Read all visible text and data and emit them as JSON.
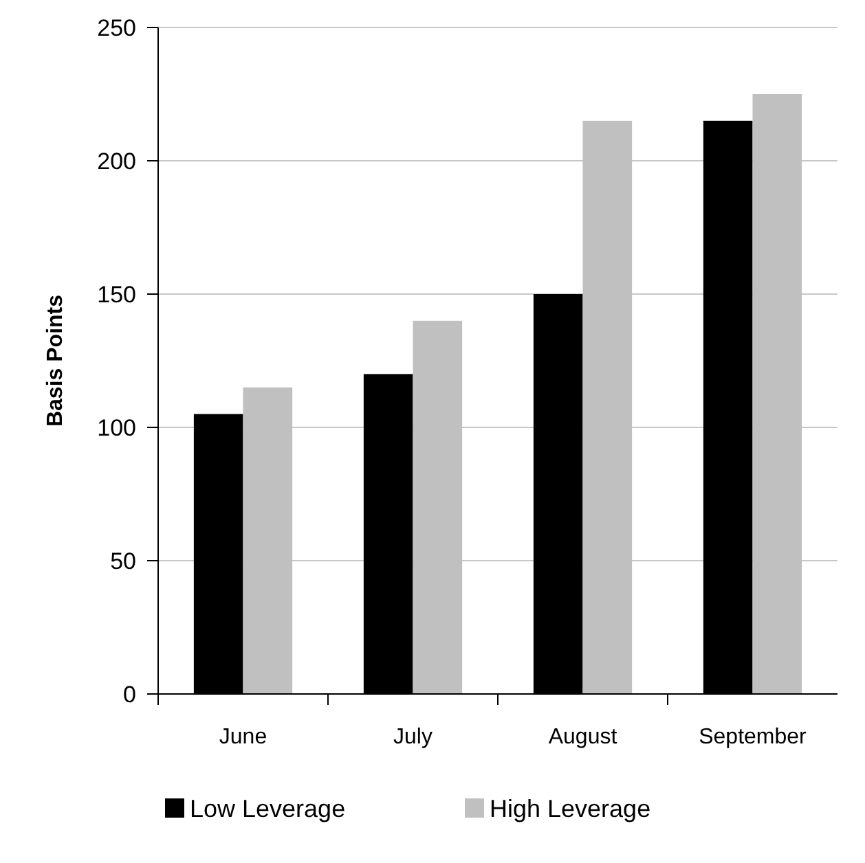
{
  "chart_data": {
    "type": "bar",
    "ylabel": "Basis Points",
    "categories": [
      "June",
      "July",
      "August",
      "September"
    ],
    "series": [
      {
        "name": "Low Leverage",
        "color": "#000000",
        "values": [
          105,
          120,
          150,
          215
        ]
      },
      {
        "name": "High Leverage",
        "color": "#c0c0c0",
        "values": [
          115,
          140,
          215,
          225
        ]
      }
    ],
    "ylim": [
      0,
      250
    ],
    "yticks": [
      0,
      50,
      100,
      150,
      200,
      250
    ],
    "grid": "y",
    "legend": "bottom"
  }
}
